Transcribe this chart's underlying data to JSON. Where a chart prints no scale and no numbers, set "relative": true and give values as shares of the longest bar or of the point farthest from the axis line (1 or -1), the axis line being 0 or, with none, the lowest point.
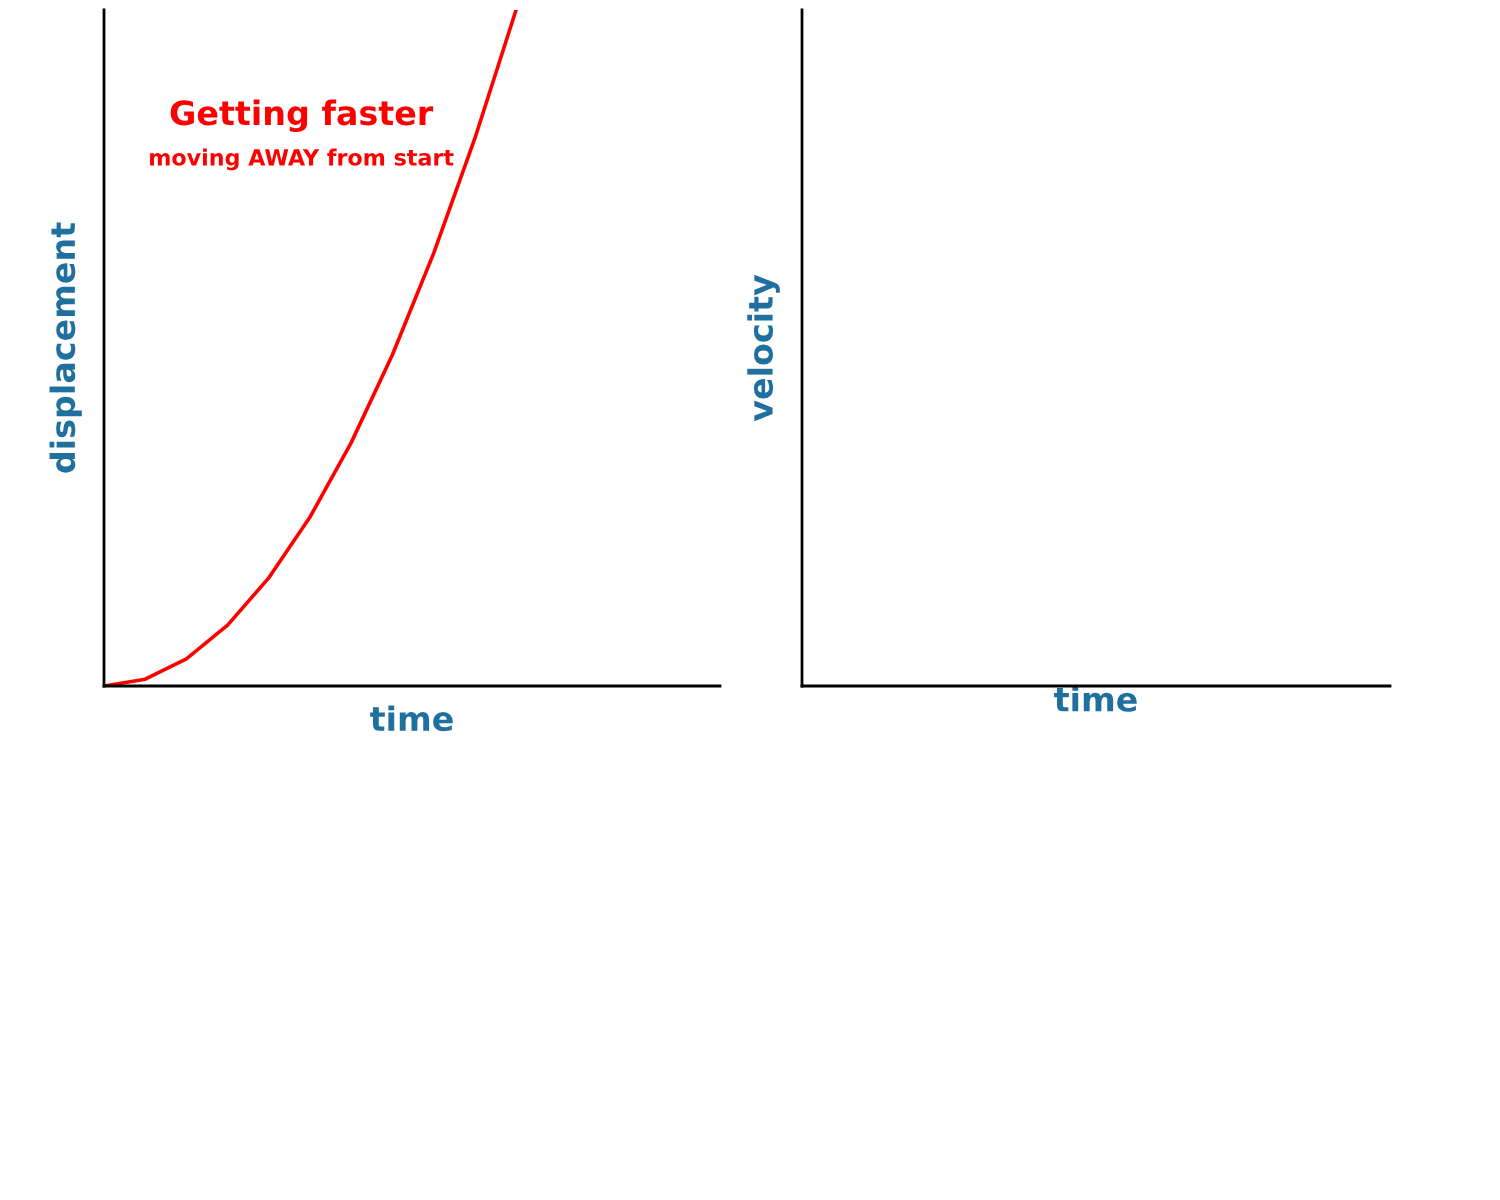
{
  "chart_data": [
    {
      "type": "line",
      "relative": true,
      "xlabel": "time",
      "ylabel": "displacement",
      "categories": [
        null,
        null,
        null,
        null,
        null,
        null,
        null,
        null,
        null,
        null,
        null
      ],
      "series": [
        {
          "color": "#ff0000",
          "values": [
            0,
            0.01,
            0.04,
            0.09,
            0.16,
            0.25,
            0.36,
            0.49,
            0.64,
            0.81,
            1
          ]
        }
      ],
      "annotations": [
        "Getting faster",
        "moving AWAY from start"
      ],
      "grid": false,
      "legend": false,
      "marker": "none",
      "line_style": "solid"
    },
    {
      "type": "other",
      "xlabel": "time",
      "ylabel": "velocity"
    }
  ]
}
